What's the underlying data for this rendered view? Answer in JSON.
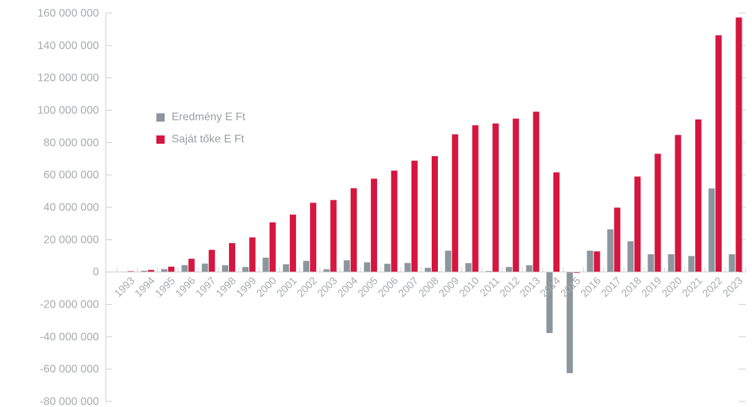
{
  "chart_data": {
    "type": "bar",
    "categories": [
      "1993",
      "1994",
      "1995",
      "1996",
      "1997",
      "1998",
      "1999",
      "2000",
      "2001",
      "2002",
      "2003",
      "2004",
      "2005",
      "2006",
      "2007",
      "2008",
      "2009",
      "2010",
      "2011",
      "2012",
      "2013",
      "2014",
      "2015",
      "2016",
      "2017",
      "2018",
      "2019",
      "2020",
      "2021",
      "2022",
      "2023"
    ],
    "series": [
      {
        "name": "Eredmény E Ft",
        "color": "#8c969e",
        "values": [
          0,
          800000,
          1800000,
          4300000,
          5200000,
          4200000,
          3100000,
          8900000,
          4800000,
          6900000,
          1700000,
          7300000,
          6000000,
          5100000,
          5600000,
          2600000,
          13200000,
          5500000,
          600000,
          3100000,
          4200000,
          -37700000,
          -62500000,
          13200000,
          26400000,
          19000000,
          11000000,
          11000000,
          9900000,
          51700000,
          11000000
        ]
      },
      {
        "name": "Saját tőke E Ft",
        "color": "#d6163f",
        "values": [
          500000,
          1300000,
          3300000,
          8200000,
          13700000,
          17900000,
          21400000,
          30700000,
          35500000,
          42800000,
          44500000,
          51800000,
          57700000,
          62700000,
          68800000,
          71600000,
          85100000,
          90700000,
          91800000,
          94800000,
          99100000,
          61600000,
          -500000,
          12800000,
          39800000,
          59000000,
          73100000,
          84700000,
          94300000,
          146300000,
          157300000
        ]
      }
    ],
    "y_ticks": [
      "160 000 000",
      "140 000 000",
      "120 000 000",
      "100 000 000",
      "80 000 000",
      "60 000 000",
      "40 000 000",
      "20 000 000",
      "0",
      "-20  000 000",
      "-40 000 000",
      "-60 000 000",
      "-80 000 000"
    ],
    "ylim": [
      -80000000,
      160000000
    ],
    "grid": false,
    "legend_position": "upper-left"
  }
}
